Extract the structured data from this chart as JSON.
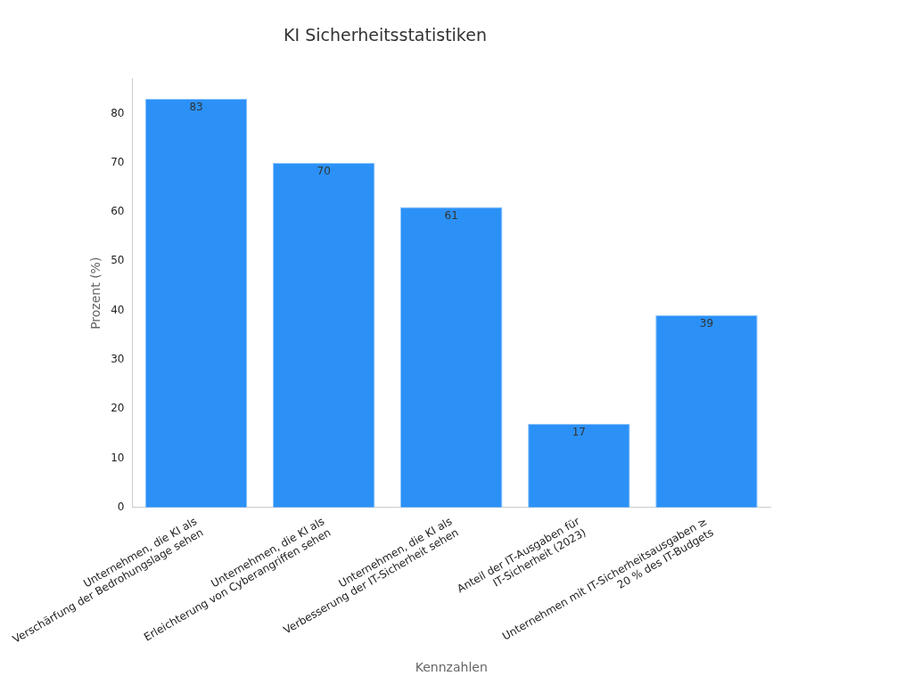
{
  "chart_data": {
    "type": "bar",
    "title": "KI Sicherheitsstatistiken",
    "xlabel": "Kennzahlen",
    "ylabel": "Prozent (%)",
    "categories": [
      "Unternehmen, die KI als\nVerschärfung der Bedrohungslage sehen",
      "Unternehmen, die KI als\nErleichterung von Cyberangriffen sehen",
      "Unternehmen, die KI als\nVerbesserung der IT-Sicherheit sehen",
      "Anteil der IT-Ausgaben für\nIT-Sicherheit (2023)",
      "Unternehmen mit IT-Sicherheitsausgaben ≥\n20 % des IT-Budgets"
    ],
    "values": [
      83,
      70,
      61,
      17,
      39
    ],
    "color": "#2b91f7",
    "ylim": [
      0,
      87
    ],
    "yticks": [
      0,
      10,
      20,
      30,
      40,
      50,
      60,
      70,
      80
    ],
    "grid": false,
    "data_labels": true
  }
}
